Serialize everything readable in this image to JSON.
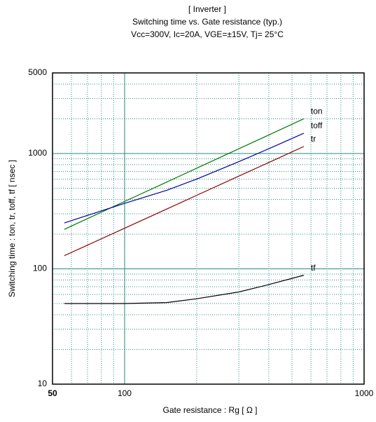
{
  "chart_data": {
    "type": "line",
    "title_lines": [
      "[ Inverter ]",
      "Switching time  vs.  Gate resistance  (typ.)",
      "Vcc=300V, Ic=20A, VGE=±15V, Tj= 25°C"
    ],
    "xlabel": "Gate resistance  :  Rg  [ Ω ]",
    "ylabel": "Switching time  :  ton, tr, toff, tf  [ nsec ]",
    "x": [
      56,
      100,
      150,
      200,
      300,
      400,
      560
    ],
    "series": [
      {
        "name": "ton",
        "color": "#007a00",
        "values": [
          220,
          384,
          566,
          746,
          1100,
          1448,
          2000
        ]
      },
      {
        "name": "toff",
        "color": "#0000a0",
        "values": [
          250,
          370,
          480,
          600,
          850,
          1100,
          1500
        ]
      },
      {
        "name": "tr",
        "color": "#8b0000",
        "values": [
          130,
          225,
          330,
          434,
          637,
          836,
          1150
        ]
      },
      {
        "name": "tf",
        "color": "#000000",
        "values": [
          50,
          50,
          51,
          55,
          63,
          73,
          88
        ]
      }
    ],
    "xlim": [
      50,
      1000
    ],
    "ylim": [
      10,
      5000
    ],
    "xticks": [
      50,
      100,
      1000
    ],
    "yticks": [
      10,
      100,
      1000,
      5000
    ],
    "xscale": "log",
    "yscale": "log",
    "grid": true
  }
}
